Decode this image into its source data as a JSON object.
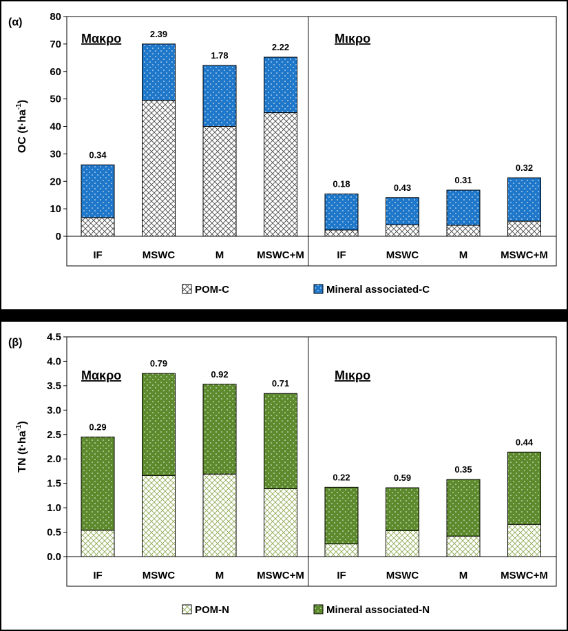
{
  "chart_data": [
    {
      "type": "bar",
      "stacked": true,
      "panel_label": "(α)",
      "ylabel": "OC (t·ha⁻¹)",
      "ylabel_base": "OC (t·ha",
      "ylabel_sup": "-1",
      "ylabel_close": ")",
      "ylim": [
        0,
        80
      ],
      "yticks": [
        0,
        10,
        20,
        30,
        40,
        50,
        60,
        70,
        80
      ],
      "tick_decimals": 0,
      "groups": [
        {
          "label": "Μακρο",
          "categories": [
            "IF",
            "MSWC",
            "M",
            "MSWC+M"
          ]
        },
        {
          "label": "Μικρο",
          "categories": [
            "IF",
            "MSWC",
            "M",
            "MSWC+M"
          ]
        }
      ],
      "series": [
        {
          "name": "POM-C",
          "pattern": "crosshatch",
          "color": "#4a4a4a",
          "values": [
            6.8,
            49.5,
            40,
            45,
            2.3,
            4.2,
            4,
            5.5
          ]
        },
        {
          "name": "Mineral associated-C",
          "pattern": "dots",
          "color": "#1f77c9",
          "values": [
            19.2,
            20.5,
            22.2,
            20.2,
            13.1,
            9.9,
            12.8,
            15.8
          ]
        }
      ],
      "bar_labels": [
        "0.34",
        "2.39",
        "1.78",
        "2.22",
        "0.18",
        "0.43",
        "0.31",
        "0.32"
      ],
      "grid": false,
      "legend_position": "bottom"
    },
    {
      "type": "bar",
      "stacked": true,
      "panel_label": "(β)",
      "ylabel": "TN (t·ha⁻¹)",
      "ylabel_base": "TN (t·ha",
      "ylabel_sup": "-1",
      "ylabel_close": ")",
      "ylim": [
        0,
        4.5
      ],
      "yticks": [
        0,
        0.5,
        1,
        1.5,
        2,
        2.5,
        3,
        3.5,
        4,
        4.5
      ],
      "tick_decimals": 1,
      "groups": [
        {
          "label": "Μακρο",
          "categories": [
            "IF",
            "MSWC",
            "M",
            "MSWC+M"
          ]
        },
        {
          "label": "Μικρο",
          "categories": [
            "IF",
            "MSWC",
            "M",
            "MSWC+M"
          ]
        }
      ],
      "series": [
        {
          "name": "POM-N",
          "pattern": "crosshatch",
          "color": "#8faa55",
          "values": [
            0.54,
            1.66,
            1.69,
            1.39,
            0.26,
            0.53,
            0.42,
            0.66
          ]
        },
        {
          "name": "Mineral associated-N",
          "pattern": "dots",
          "color": "#5c8a2c",
          "values": [
            1.91,
            2.09,
            1.84,
            1.95,
            1.16,
            0.88,
            1.16,
            1.48
          ]
        }
      ],
      "bar_labels": [
        "0.29",
        "0.79",
        "0.92",
        "0.71",
        "0.22",
        "0.59",
        "0.35",
        "0.44"
      ],
      "grid": false,
      "legend_position": "bottom"
    }
  ]
}
